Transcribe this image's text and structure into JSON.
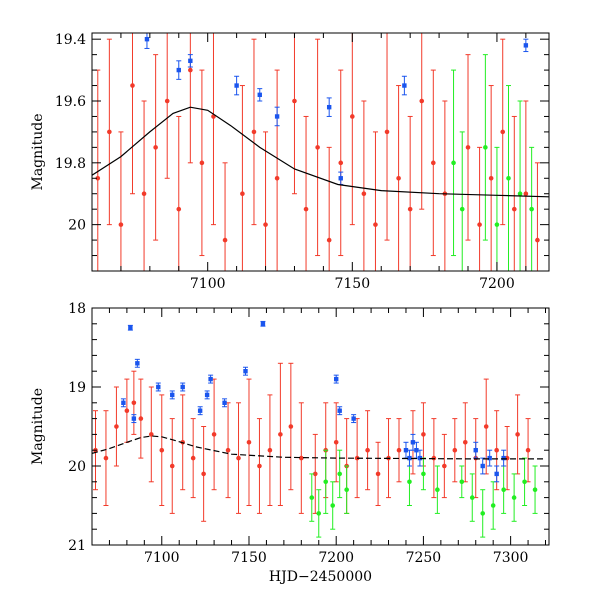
{
  "chart_data": [
    {
      "type": "scatter",
      "panel": "top",
      "title": "",
      "xlabel": "",
      "ylabel": "Magnitude",
      "xlim": [
        7060,
        7218
      ],
      "ylim": [
        20.15,
        19.38
      ],
      "y_inverted": true,
      "xticks": [
        7100,
        7150,
        7200
      ],
      "xtick_labels": [
        "7100",
        "7150",
        "7200"
      ],
      "yticks": [
        19.4,
        19.6,
        19.8,
        20.0
      ],
      "ytick_labels": [
        "19.4",
        "19.6",
        "19.8",
        "20"
      ],
      "colors": {
        "red": "#f23a2a",
        "green": "#22ee22",
        "blue": "#1a55ee",
        "model": "#000000"
      },
      "model_curve": {
        "name": "model",
        "x": [
          7060,
          7070,
          7080,
          7088,
          7094,
          7100,
          7108,
          7118,
          7130,
          7145,
          7160,
          7180,
          7200,
          7218
        ],
        "y": [
          19.84,
          19.78,
          19.7,
          19.64,
          19.62,
          19.63,
          19.68,
          19.75,
          19.82,
          19.87,
          19.89,
          19.9,
          19.905,
          19.91
        ]
      },
      "series": [
        {
          "name": "red",
          "x": [
            7062,
            7066,
            7070,
            7074,
            7078,
            7082,
            7086,
            7090,
            7094,
            7098,
            7102,
            7106,
            7112,
            7116,
            7120,
            7124,
            7130,
            7134,
            7138,
            7142,
            7146,
            7150,
            7154,
            7158,
            7162,
            7166,
            7170,
            7174,
            7178,
            7182,
            7190,
            7194,
            7198,
            7202,
            7206,
            7210,
            7214
          ],
          "y": [
            19.85,
            19.7,
            20.0,
            19.55,
            19.9,
            19.75,
            19.6,
            19.95,
            19.5,
            19.8,
            19.65,
            20.05,
            19.9,
            19.7,
            20.0,
            19.85,
            19.6,
            19.95,
            19.75,
            20.05,
            19.8,
            19.65,
            19.9,
            20.0,
            19.7,
            19.85,
            19.95,
            19.6,
            19.8,
            19.9,
            19.75,
            20.0,
            19.85,
            19.7,
            19.95,
            19.9,
            20.05
          ],
          "err": [
            0.35,
            0.3,
            0.3,
            0.35,
            0.3,
            0.3,
            0.25,
            0.3,
            0.3,
            0.3,
            0.35,
            0.25,
            0.35,
            0.3,
            0.3,
            0.35,
            0.3,
            0.3,
            0.35,
            0.3,
            0.3,
            0.35,
            0.3,
            0.3,
            0.35,
            0.3,
            0.3,
            0.35,
            0.3,
            0.3,
            0.3,
            0.25,
            0.3,
            0.3,
            0.3,
            0.3,
            0.25
          ]
        },
        {
          "name": "green",
          "x": [
            7185,
            7188,
            7196,
            7200,
            7204,
            7208,
            7212
          ],
          "y": [
            19.8,
            19.95,
            19.75,
            20.0,
            19.85,
            19.9,
            19.95
          ],
          "err": [
            0.3,
            0.25,
            0.3,
            0.25,
            0.3,
            0.3,
            0.2
          ]
        },
        {
          "name": "blue",
          "x": [
            7079,
            7090,
            7094,
            7110,
            7118,
            7124,
            7142,
            7146,
            7168,
            7210
          ],
          "y": [
            19.4,
            19.5,
            19.47,
            19.55,
            19.58,
            19.65,
            19.62,
            19.85,
            19.55,
            19.42
          ],
          "err": [
            0.03,
            0.03,
            0.02,
            0.03,
            0.02,
            0.03,
            0.03,
            0.02,
            0.03,
            0.02
          ]
        }
      ]
    },
    {
      "type": "scatter",
      "panel": "bottom",
      "title": "",
      "xlabel": "HJD−2450000",
      "ylabel": "Magnitude",
      "xlim": [
        7060,
        7322
      ],
      "ylim": [
        21,
        18
      ],
      "y_inverted": true,
      "xticks": [
        7100,
        7150,
        7200,
        7250,
        7300
      ],
      "xtick_labels": [
        "7100",
        "7150",
        "7200",
        "7250",
        "7300"
      ],
      "yticks": [
        18,
        19,
        20,
        21
      ],
      "ytick_labels": [
        "18",
        "19",
        "20",
        "21"
      ],
      "colors": {
        "red": "#f23a2a",
        "green": "#22ee22",
        "blue": "#1a55ee",
        "model": "#000000"
      },
      "model_curve": {
        "name": "model",
        "x": [
          7060,
          7070,
          7080,
          7088,
          7094,
          7100,
          7108,
          7120,
          7140,
          7170,
          7200,
          7240,
          7280,
          7320
        ],
        "y": [
          19.84,
          19.78,
          19.7,
          19.64,
          19.62,
          19.63,
          19.68,
          19.76,
          19.85,
          19.89,
          19.9,
          19.905,
          19.91,
          19.91
        ]
      },
      "series": [
        {
          "name": "red",
          "x": [
            7062,
            7068,
            7074,
            7080,
            7084,
            7088,
            7094,
            7100,
            7106,
            7112,
            7118,
            7124,
            7130,
            7138,
            7144,
            7150,
            7156,
            7162,
            7168,
            7174,
            7180,
            7188,
            7194,
            7200,
            7206,
            7212,
            7218,
            7224,
            7230,
            7236,
            7244,
            7250,
            7256,
            7262,
            7268,
            7274,
            7280,
            7286,
            7292,
            7298,
            7304,
            7310
          ],
          "y": [
            19.8,
            19.9,
            19.5,
            19.3,
            19.2,
            19.4,
            19.6,
            19.8,
            20.0,
            19.7,
            19.9,
            20.1,
            19.6,
            19.8,
            19.9,
            19.7,
            20.0,
            19.8,
            19.6,
            19.5,
            19.9,
            20.1,
            19.8,
            19.7,
            20.0,
            19.9,
            19.8,
            20.1,
            19.9,
            19.8,
            19.7,
            19.6,
            19.9,
            20.0,
            19.8,
            19.7,
            19.9,
            19.5,
            19.8,
            19.9,
            19.6,
            19.8
          ],
          "err": [
            0.5,
            0.6,
            0.5,
            0.4,
            0.4,
            0.5,
            0.6,
            0.7,
            0.6,
            0.6,
            0.5,
            0.6,
            0.7,
            0.6,
            0.7,
            0.8,
            0.6,
            0.7,
            0.9,
            0.8,
            0.7,
            0.5,
            0.6,
            0.5,
            0.6,
            0.5,
            0.5,
            0.4,
            0.5,
            0.4,
            0.4,
            0.4,
            0.5,
            0.4,
            0.4,
            0.5,
            0.5,
            0.6,
            0.5,
            0.4,
            0.5,
            0.4
          ]
        },
        {
          "name": "green",
          "x": [
            7186,
            7190,
            7194,
            7198,
            7202,
            7206,
            7242,
            7250,
            7258,
            7272,
            7278,
            7284,
            7290,
            7296,
            7302,
            7308,
            7314
          ],
          "y": [
            20.4,
            20.6,
            20.2,
            20.5,
            20.1,
            20.3,
            20.2,
            20.1,
            20.3,
            20.2,
            20.4,
            20.6,
            20.5,
            20.3,
            20.4,
            20.2,
            20.3
          ],
          "err": [
            0.3,
            0.3,
            0.4,
            0.3,
            0.3,
            0.3,
            0.3,
            0.2,
            0.3,
            0.2,
            0.3,
            0.3,
            0.3,
            0.3,
            0.3,
            0.3,
            0.3
          ]
        },
        {
          "name": "blue",
          "x": [
            7078,
            7082,
            7084,
            7086,
            7098,
            7106,
            7112,
            7122,
            7126,
            7128,
            7136,
            7148,
            7158,
            7200,
            7202,
            7210,
            7240,
            7242,
            7244,
            7246,
            7248,
            7280,
            7284,
            7288,
            7292,
            7296
          ],
          "y": [
            19.2,
            18.25,
            19.4,
            18.7,
            19.0,
            19.1,
            19.0,
            19.3,
            19.1,
            18.9,
            19.2,
            18.8,
            18.2,
            18.9,
            19.3,
            19.4,
            19.8,
            19.9,
            19.7,
            19.8,
            19.9,
            19.8,
            20.0,
            19.9,
            20.1,
            19.9
          ],
          "err": [
            0.05,
            0.03,
            0.05,
            0.05,
            0.05,
            0.05,
            0.05,
            0.05,
            0.05,
            0.05,
            0.05,
            0.05,
            0.03,
            0.05,
            0.05,
            0.05,
            0.1,
            0.1,
            0.1,
            0.1,
            0.1,
            0.1,
            0.1,
            0.1,
            0.1,
            0.1
          ]
        }
      ]
    }
  ]
}
